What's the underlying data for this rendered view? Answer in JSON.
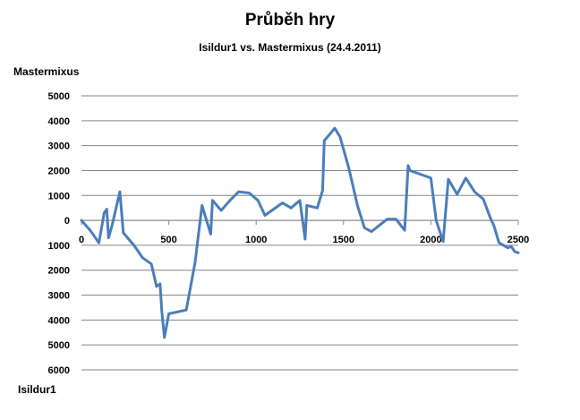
{
  "chart_data": {
    "type": "line",
    "title": "Průběh hry",
    "subtitle": "Isildur1 vs. Mastermixus (24.4.2011)",
    "ylabel_top": "Mastermixus",
    "ylabel_bottom": "Isildur1",
    "xlim": [
      0,
      2500
    ],
    "ylim": [
      -6000,
      5000
    ],
    "x_ticks": [
      0,
      500,
      1000,
      1500,
      2000,
      2500
    ],
    "x_tick_labels": [
      "0",
      "500",
      "1000",
      "1500",
      "2000",
      "2500"
    ],
    "y_ticks": [
      5000,
      4000,
      3000,
      2000,
      1000,
      0,
      -1000,
      -2000,
      -3000,
      -4000,
      -5000,
      -6000
    ],
    "y_tick_labels": [
      "5000",
      "4000",
      "3000",
      "2000",
      "1000",
      "0",
      "1000",
      "2000",
      "3000",
      "4000",
      "5000",
      "6000"
    ],
    "grid": "horizontal",
    "line_color": "#4a7ebb",
    "series": [
      {
        "x": [
          0,
          50,
          100,
          130,
          145,
          155,
          175,
          220,
          240,
          300,
          350,
          400,
          430,
          450,
          460,
          475,
          500,
          600,
          650,
          690,
          740,
          750,
          800,
          850,
          900,
          960,
          1010,
          1050,
          1150,
          1200,
          1250,
          1280,
          1290,
          1350,
          1380,
          1390,
          1450,
          1480,
          1530,
          1580,
          1620,
          1660,
          1750,
          1800,
          1850,
          1870,
          1880,
          1920,
          1960,
          2000,
          2030,
          2070,
          2100,
          2150,
          2200,
          2250,
          2300,
          2340,
          2360,
          2390,
          2440,
          2460,
          2480,
          2500
        ],
        "y": [
          0,
          -400,
          -900,
          300,
          450,
          -700,
          -200,
          1150,
          -500,
          -1000,
          -1500,
          -1750,
          -2650,
          -2550,
          -3650,
          -4700,
          -3750,
          -3600,
          -1700,
          600,
          -550,
          800,
          400,
          800,
          1150,
          1100,
          800,
          200,
          700,
          500,
          800,
          -750,
          600,
          500,
          1200,
          3200,
          3700,
          3350,
          2100,
          600,
          -300,
          -450,
          50,
          50,
          -400,
          2200,
          2000,
          1900,
          1800,
          1700,
          0,
          -850,
          1650,
          1050,
          1700,
          1150,
          850,
          100,
          -200,
          -900,
          -1100,
          -1050,
          -1250,
          -1300
        ]
      }
    ]
  }
}
